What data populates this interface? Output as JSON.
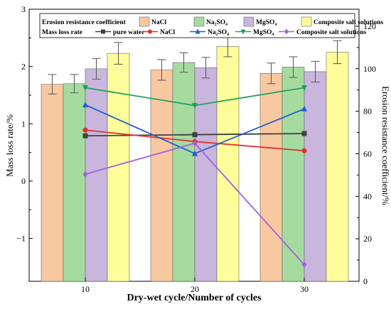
{
  "chart_data": {
    "type": "bar",
    "xlabel": "Dry-wet cycle/Number of cycles",
    "ylabel_left": "Mass loss rate/%",
    "ylabel_right": "Erosion resistance coefficient/%",
    "categories": [
      "10",
      "20",
      "30"
    ],
    "x_ticks": [
      "10",
      "20",
      "30"
    ],
    "y_left_ticks": [
      "−1",
      "0",
      "1",
      "2",
      "3"
    ],
    "y_right_ticks": [
      "0",
      "20",
      "40",
      "60",
      "80",
      "100",
      "120"
    ],
    "ylim_left": [
      -1.75,
      3
    ],
    "ylim_right": [
      0,
      128
    ],
    "legend_bar_title": "Erosion resistance coefficient",
    "legend_line_title": "Mass loss rate",
    "bar_series": [
      {
        "name": "NaCl",
        "color": "#f8c8a0",
        "values": [
          1.69,
          1.94,
          1.88
        ],
        "errors": [
          0.17,
          0.18,
          0.18
        ]
      },
      {
        "name": "Na₂SO₄",
        "color": "#a6dba0",
        "values": [
          1.7,
          2.07,
          1.99
        ],
        "errors": [
          0.16,
          0.17,
          0.18
        ]
      },
      {
        "name": "MgSO₄",
        "color": "#c9b6dc",
        "values": [
          1.96,
          1.98,
          1.91
        ],
        "errors": [
          0.18,
          0.18,
          0.18
        ]
      },
      {
        "name": "Composite salt solutions",
        "color": "#fdfd9a",
        "values": [
          2.23,
          2.35,
          2.25
        ],
        "errors": [
          0.19,
          0.18,
          0.2
        ]
      }
    ],
    "line_series": [
      {
        "name": "pure water",
        "color": "#404040",
        "marker": "square",
        "values": [
          0.79,
          0.81,
          0.83
        ]
      },
      {
        "name": "NaCl",
        "color": "#e0312f",
        "marker": "circle",
        "values": [
          0.89,
          0.69,
          0.53
        ]
      },
      {
        "name": "Na₂SO₄",
        "color": "#1f5fd0",
        "marker": "triangle-up",
        "values": [
          1.33,
          0.48,
          1.26
        ]
      },
      {
        "name": "MgSO₄",
        "color": "#21a060",
        "marker": "triangle-down",
        "values": [
          1.63,
          1.32,
          1.63
        ]
      },
      {
        "name": "Composite salt solutions",
        "color": "#a35ee0",
        "marker": "diamond",
        "values": [
          0.12,
          0.66,
          -1.46
        ]
      }
    ]
  }
}
